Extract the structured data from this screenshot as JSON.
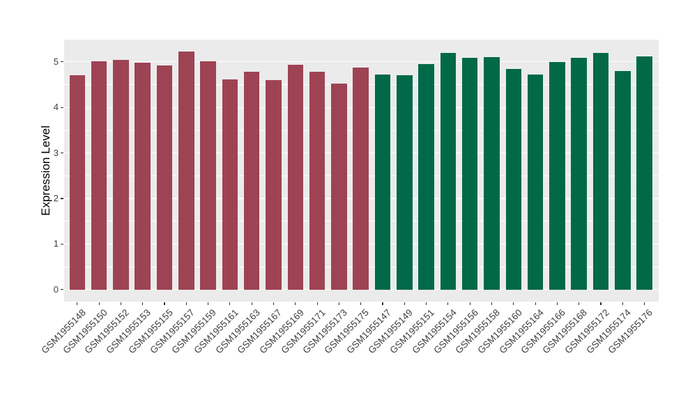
{
  "chart_data": {
    "type": "bar",
    "title": "",
    "xlabel": "",
    "ylabel": "Expression Level",
    "yticks": [
      "0",
      "1",
      "2",
      "3",
      "4",
      "5"
    ],
    "ylim": [
      -0.27,
      5.49
    ],
    "grid": "horizontal white major and minor gridlines on gray panel",
    "legend_position": "none",
    "groups": [
      {
        "name": "group-maroon",
        "color": "#9E4354"
      },
      {
        "name": "group-green",
        "color": "#026948"
      }
    ],
    "bars": [
      {
        "label": "GSM1955148",
        "value": 4.7,
        "group": 0
      },
      {
        "label": "GSM1955150",
        "value": 5.02,
        "group": 0
      },
      {
        "label": "GSM1955152",
        "value": 5.05,
        "group": 0
      },
      {
        "label": "GSM1955153",
        "value": 4.98,
        "group": 0
      },
      {
        "label": "GSM1955155",
        "value": 4.92,
        "group": 0
      },
      {
        "label": "GSM1955157",
        "value": 5.23,
        "group": 0
      },
      {
        "label": "GSM1955159",
        "value": 5.01,
        "group": 0
      },
      {
        "label": "GSM1955161",
        "value": 4.62,
        "group": 0
      },
      {
        "label": "GSM1955163",
        "value": 4.79,
        "group": 0
      },
      {
        "label": "GSM1955167",
        "value": 4.6,
        "group": 0
      },
      {
        "label": "GSM1955169",
        "value": 4.94,
        "group": 0
      },
      {
        "label": "GSM1955171",
        "value": 4.78,
        "group": 0
      },
      {
        "label": "GSM1955173",
        "value": 4.53,
        "group": 0
      },
      {
        "label": "GSM1955175",
        "value": 4.87,
        "group": 0
      },
      {
        "label": "GSM1955147",
        "value": 4.72,
        "group": 1
      },
      {
        "label": "GSM1955149",
        "value": 4.7,
        "group": 1
      },
      {
        "label": "GSM1955151",
        "value": 4.95,
        "group": 1
      },
      {
        "label": "GSM1955154",
        "value": 5.2,
        "group": 1
      },
      {
        "label": "GSM1955156",
        "value": 5.09,
        "group": 1
      },
      {
        "label": "GSM1955158",
        "value": 5.1,
        "group": 1
      },
      {
        "label": "GSM1955160",
        "value": 4.84,
        "group": 1
      },
      {
        "label": "GSM1955164",
        "value": 4.72,
        "group": 1
      },
      {
        "label": "GSM1955166",
        "value": 5.0,
        "group": 1
      },
      {
        "label": "GSM1955168",
        "value": 5.09,
        "group": 1
      },
      {
        "label": "GSM1955172",
        "value": 5.19,
        "group": 1
      },
      {
        "label": "GSM1955174",
        "value": 4.8,
        "group": 1
      },
      {
        "label": "GSM1955176",
        "value": 5.12,
        "group": 1
      }
    ],
    "colors": {
      "panel_background": "#EBEBEB",
      "gridline": "#FFFFFF",
      "maroon": "#9E4354",
      "green": "#026948",
      "tick_text": "#404040",
      "axis_title": "#000000"
    }
  }
}
